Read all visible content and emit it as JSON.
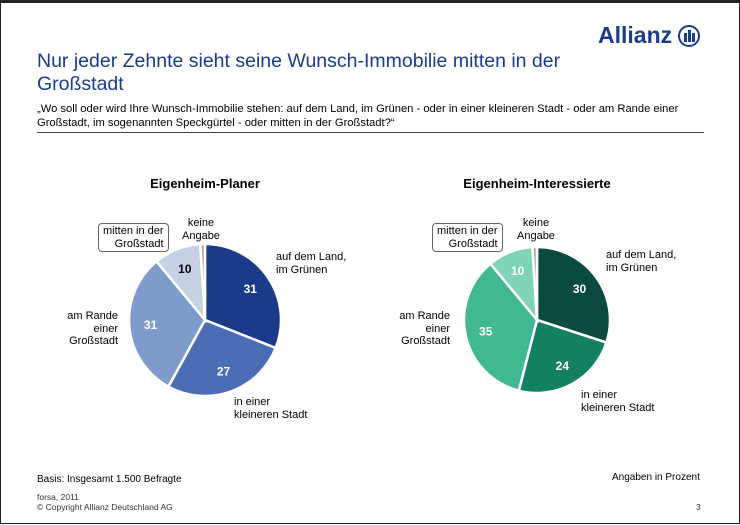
{
  "brand": {
    "name": "Allianz",
    "color": "#1a3c8c"
  },
  "title": "Nur jeder Zehnte sieht seine Wunsch-Immobilie mitten in der Großstadt",
  "subtitle": "„Wo soll oder wird Ihre Wunsch-Immobilie stehen: auf dem Land, im Grünen - oder in einer kleineren Stadt - oder am Rande einer Großstadt, im sogenannten Speckgürtel - oder mitten in der Großstadt?“",
  "chart_data": [
    {
      "type": "pie",
      "title": "Eigenheim-Planer",
      "categories": [
        "auf dem Land, im Grünen",
        "in einer kleineren Stadt",
        "am Rande einer Großstadt",
        "mitten in der Großstadt",
        "keine Angabe"
      ],
      "values": [
        31,
        27,
        31,
        10,
        1
      ],
      "colors": [
        "#1c3a8a",
        "#4a6db6",
        "#7f9bcd",
        "#c6d0e4",
        "#a8a8a8"
      ],
      "label_colors": [
        "#fff",
        "#fff",
        "#fff",
        "#000",
        ""
      ]
    },
    {
      "type": "pie",
      "title": "Eigenheim-Interessierte",
      "categories": [
        "auf dem Land, im Grünen",
        "in einer kleineren Stadt",
        "am Rande einer Großstadt",
        "mitten in der Großstadt",
        "keine Angabe"
      ],
      "values": [
        30,
        24,
        35,
        10,
        1
      ],
      "colors": [
        "#0b4a3e",
        "#138062",
        "#40b993",
        "#7fd4b6",
        "#a8a8a8"
      ],
      "label_colors": [
        "#fff",
        "#fff",
        "#fff",
        "#fff",
        ""
      ]
    }
  ],
  "labels": {
    "land_1": "auf dem Land,",
    "land_2": "im Grünen",
    "stadt_1": "in einer",
    "stadt_2": "kleineren Stadt",
    "stadt2_1": "in einer",
    "stadt2_2": "kleineren Stadt",
    "rande_1": "am Rande",
    "rande_2": "einer",
    "rande_3": "Großstadt",
    "mitten_1": "mitten in der",
    "mitten_2": "Großstadt",
    "keine_1": "keine",
    "keine_2": "Angabe"
  },
  "footer": {
    "basis": "Basis: Insgesamt 1.500 Befragte",
    "unit": "Angaben in Prozent",
    "source": "forsa, 2011",
    "copyright": "© Copyright Allianz Deutschland AG",
    "page": "3"
  }
}
